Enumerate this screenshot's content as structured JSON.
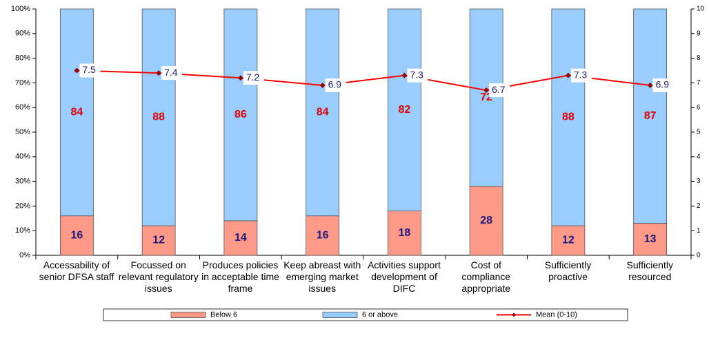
{
  "chart_data": {
    "type": "bar",
    "stacked": true,
    "categories": [
      "Accessability of senior DFSA staff",
      "Focussed on relevant regulatory issues",
      "Produces policies in acceptable time frame",
      "Keep abreast with emerging market issues",
      "Activities support development of DIFC",
      "Cost of compliance appropriate",
      "Sufficiently proactive",
      "Sufficiently resourced"
    ],
    "series": [
      {
        "name": "Below 6",
        "color": "#ff9988",
        "values": [
          16,
          12,
          14,
          16,
          18,
          28,
          12,
          13
        ]
      },
      {
        "name": "6 or above",
        "color": "#99ccff",
        "values": [
          84,
          88,
          86,
          84,
          82,
          72,
          88,
          87
        ]
      },
      {
        "name": "Mean (0-10)",
        "color": "#ff0000",
        "type": "line",
        "axis": "y2",
        "values": [
          7.5,
          7.4,
          7.2,
          6.9,
          7.3,
          6.7,
          7.3,
          6.9
        ]
      }
    ],
    "ylim": [
      0,
      100
    ],
    "yticks": [
      {
        "value": 0,
        "label": "0%"
      },
      {
        "value": 10,
        "label": "10%"
      },
      {
        "value": 20,
        "label": "20%"
      },
      {
        "value": 30,
        "label": "30%"
      },
      {
        "value": 40,
        "label": "40%"
      },
      {
        "value": 50,
        "label": "50%"
      },
      {
        "value": 60,
        "label": "60%"
      },
      {
        "value": 70,
        "label": "70%"
      },
      {
        "value": 80,
        "label": "80%"
      },
      {
        "value": 90,
        "label": "90%"
      },
      {
        "value": 100,
        "label": "100%"
      }
    ],
    "y2lim": [
      0,
      10
    ],
    "y2ticks": [
      0,
      1,
      2,
      3,
      4,
      5,
      6,
      7,
      8,
      9,
      10
    ],
    "legend": "bottom"
  }
}
